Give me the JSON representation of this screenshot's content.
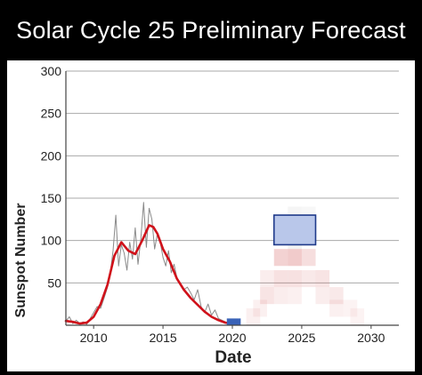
{
  "chart_data": {
    "type": "line",
    "title": "Solar Cycle 25 Preliminary Forecast",
    "xlabel": "Date",
    "ylabel": "Sunspot Number",
    "xlim": [
      2008,
      2032
    ],
    "ylim": [
      0,
      300
    ],
    "xticks": [
      2010,
      2015,
      2020,
      2025,
      2030
    ],
    "yticks": [
      50,
      100,
      150,
      200,
      250,
      300
    ],
    "grid": true,
    "legend": "none",
    "colors": {
      "monthly": "#8a8a8a",
      "smoothed": "#d0121b",
      "minimum_box": "#3a63b8",
      "forecast_box_fill": "#b9c7ea",
      "forecast_box_edge": "#1f3a8a",
      "probability_cloud": "#d86a6a",
      "probability_cloud_grey": "#b0b0b0"
    },
    "series": [
      {
        "key": "monthly",
        "x": [
          2008.0,
          2008.25,
          2008.5,
          2008.75,
          2009.0,
          2009.25,
          2009.5,
          2009.75,
          2010.0,
          2010.25,
          2010.5,
          2010.75,
          2011.0,
          2011.2,
          2011.4,
          2011.6,
          2011.8,
          2012.0,
          2012.2,
          2012.4,
          2012.6,
          2012.8,
          2013.0,
          2013.2,
          2013.4,
          2013.6,
          2013.8,
          2014.0,
          2014.2,
          2014.4,
          2014.6,
          2014.8,
          2015.0,
          2015.2,
          2015.4,
          2015.6,
          2015.8,
          2016.0,
          2016.25,
          2016.5,
          2016.75,
          2017.0,
          2017.25,
          2017.5,
          2017.75,
          2018.0,
          2018.25,
          2018.5,
          2018.75,
          2019.0,
          2019.25,
          2019.5,
          2019.75,
          2020.0
        ],
        "values": [
          5,
          10,
          2,
          6,
          2,
          4,
          1,
          8,
          15,
          22,
          20,
          32,
          45,
          62,
          88,
          130,
          70,
          95,
          85,
          65,
          98,
          78,
          115,
          72,
          102,
          145,
          92,
          138,
          125,
          90,
          108,
          98,
          80,
          70,
          88,
          62,
          72,
          56,
          48,
          42,
          45,
          38,
          30,
          42,
          22,
          15,
          25,
          12,
          18,
          8,
          6,
          4,
          2,
          1
        ]
      },
      {
        "key": "smoothed",
        "x": [
          2008.0,
          2008.5,
          2009.0,
          2009.5,
          2010.0,
          2010.5,
          2011.0,
          2011.5,
          2012.0,
          2012.5,
          2013.0,
          2013.5,
          2014.0,
          2014.3,
          2014.6,
          2015.0,
          2015.5,
          2016.0,
          2016.5,
          2017.0,
          2017.5,
          2018.0,
          2018.5,
          2019.0,
          2019.5,
          2019.9
        ],
        "values": [
          5,
          4,
          2,
          3,
          10,
          25,
          48,
          82,
          98,
          88,
          84,
          100,
          118,
          116,
          108,
          90,
          75,
          55,
          42,
          32,
          24,
          16,
          10,
          6,
          3,
          2
        ]
      }
    ],
    "solar_minimum": {
      "x": [
        2019.6,
        2020.6
      ],
      "y": [
        0,
        8
      ]
    },
    "forecast_maximum": {
      "x": [
        2023.0,
        2026.0
      ],
      "y": [
        95,
        130
      ]
    },
    "probability_cloud": [
      {
        "x": 2022.5,
        "y": 35,
        "p": 0.18
      },
      {
        "x": 2022.5,
        "y": 55,
        "p": 0.12
      },
      {
        "x": 2023.5,
        "y": 55,
        "p": 0.2
      },
      {
        "x": 2023.5,
        "y": 80,
        "p": 0.3
      },
      {
        "x": 2023.5,
        "y": 35,
        "p": 0.12
      },
      {
        "x": 2024.5,
        "y": 80,
        "p": 0.35
      },
      {
        "x": 2024.5,
        "y": 55,
        "p": 0.2
      },
      {
        "x": 2024.5,
        "y": 35,
        "p": 0.1
      },
      {
        "x": 2025.5,
        "y": 80,
        "p": 0.22
      },
      {
        "x": 2025.5,
        "y": 55,
        "p": 0.15
      },
      {
        "x": 2026.5,
        "y": 55,
        "p": 0.18
      },
      {
        "x": 2026.5,
        "y": 35,
        "p": 0.12
      },
      {
        "x": 2027.5,
        "y": 35,
        "p": 0.15
      },
      {
        "x": 2027.5,
        "y": 20,
        "p": 0.1
      },
      {
        "x": 2028.5,
        "y": 20,
        "p": 0.08
      },
      {
        "x": 2029.0,
        "y": 10,
        "p": 0.08
      },
      {
        "x": 2022.0,
        "y": 20,
        "p": 0.1
      },
      {
        "x": 2021.5,
        "y": 10,
        "p": 0.1
      }
    ]
  }
}
